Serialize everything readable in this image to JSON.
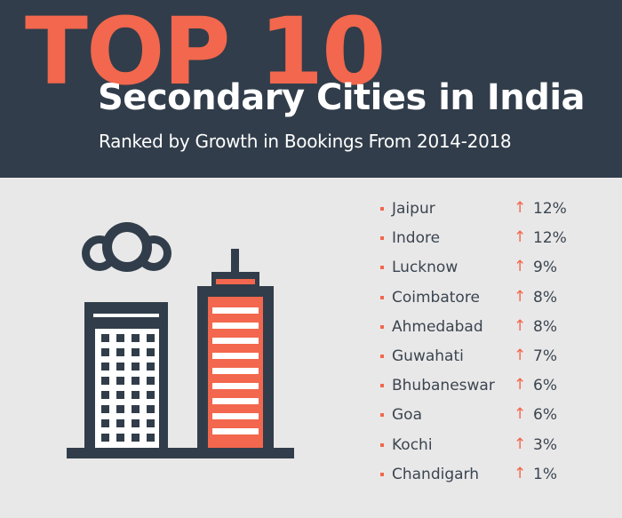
{
  "header": {
    "top_label": "TOP 10",
    "title": "Secondary Cities in India",
    "subtitle": "Ranked by Growth in Bookings From 2014-2018"
  },
  "colors": {
    "header_bg": "#313d4a",
    "accent": "#f2674d",
    "page_bg": "#e9e8e8",
    "text_dark": "#3a4550"
  },
  "icons": {
    "illustration": "buildings-and-clouds-icon",
    "growth": "arrow-up-icon"
  },
  "cities": [
    {
      "name": "Jaipur",
      "growth": "12%"
    },
    {
      "name": "Indore",
      "growth": "12%"
    },
    {
      "name": "Lucknow",
      "growth": "9%"
    },
    {
      "name": "Coimbatore",
      "growth": "8%"
    },
    {
      "name": "Ahmedabad",
      "growth": "8%"
    },
    {
      "name": "Guwahati",
      "growth": "7%"
    },
    {
      "name": "Bhubaneswar",
      "growth": "6%"
    },
    {
      "name": "Goa",
      "growth": "6%"
    },
    {
      "name": "Kochi",
      "growth": "3%"
    },
    {
      "name": "Chandigarh",
      "growth": "1%"
    }
  ]
}
